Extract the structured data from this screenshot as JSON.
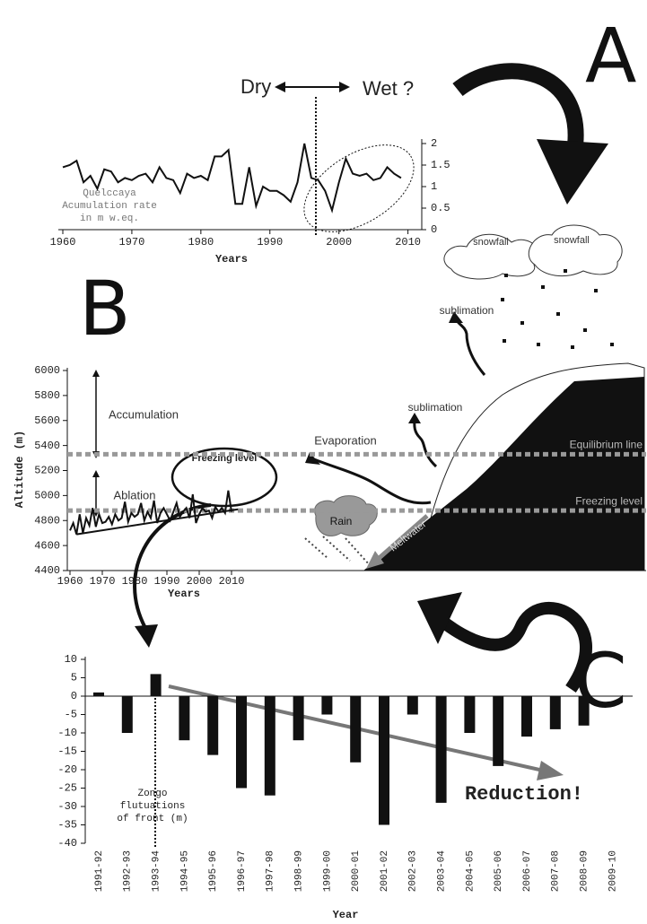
{
  "chart_data": [
    {
      "type": "line",
      "panel": "A",
      "x": [
        1960,
        1961,
        1962,
        1963,
        1964,
        1965,
        1966,
        1967,
        1968,
        1969,
        1970,
        1971,
        1972,
        1973,
        1974,
        1975,
        1976,
        1977,
        1978,
        1979,
        1980,
        1981,
        1982,
        1983,
        1984,
        1985,
        1986,
        1987,
        1988,
        1989,
        1990,
        1991,
        1992,
        1993,
        1994,
        1995,
        1996,
        1997,
        1998,
        1999,
        2000,
        2001,
        2002,
        2003,
        2004,
        2005,
        2006,
        2007,
        2008,
        2009
      ],
      "series": [
        {
          "axis": "y2",
          "color": "#111",
          "values": [
            1.45,
            1.5,
            1.6,
            1.1,
            1.25,
            0.95,
            1.4,
            1.35,
            1.1,
            1.2,
            1.15,
            1.25,
            1.3,
            1.1,
            1.45,
            1.2,
            1.15,
            0.85,
            1.3,
            1.2,
            1.25,
            1.15,
            1.7,
            1.7,
            1.85,
            0.6,
            0.6,
            1.45,
            0.55,
            1.0,
            0.9,
            0.9,
            0.8,
            0.65,
            1.1,
            2.0,
            1.2,
            1.15,
            0.9,
            0.45,
            1.1,
            1.65,
            1.3,
            1.25,
            1.3,
            1.15,
            1.2,
            1.45,
            1.3,
            1.2
          ]
        }
      ],
      "xlim": [
        1960,
        2012
      ],
      "xticks": [
        1960,
        1970,
        1980,
        1990,
        2000,
        2010
      ],
      "y2lim": [
        0,
        2
      ],
      "y2ticks": [
        0,
        0.5,
        1,
        1.5,
        2
      ],
      "xlabel": "Years",
      "annotations": {
        "dry": "Dry",
        "wet": "Wet ?",
        "series_label": [
          "Quelccaya",
          "Acumulation rate",
          "in m w.eq."
        ]
      }
    },
    {
      "type": "line",
      "panel": "B",
      "x": [
        1960,
        1961,
        1962,
        1963,
        1964,
        1965,
        1966,
        1967,
        1968,
        1969,
        1970,
        1971,
        1972,
        1973,
        1974,
        1975,
        1976,
        1977,
        1978,
        1979,
        1980,
        1981,
        1982,
        1983,
        1984,
        1985,
        1986,
        1987,
        1988,
        1989,
        1990,
        1991,
        1992,
        1993,
        1994,
        1995,
        1996,
        1997,
        1998,
        1999,
        2000,
        2001,
        2002,
        2003,
        2004,
        2005,
        2006,
        2007,
        2008,
        2009,
        2010
      ],
      "series": [
        {
          "name": "Freezing level",
          "color": "#111",
          "values": [
            4720,
            4780,
            4690,
            4850,
            4700,
            4820,
            4760,
            4900,
            4750,
            4850,
            4780,
            4790,
            4830,
            4770,
            4850,
            4800,
            4820,
            4950,
            4790,
            4860,
            4830,
            4850,
            4940,
            4800,
            4870,
            4820,
            4960,
            4780,
            4860,
            4900,
            4850,
            4800,
            4870,
            4940,
            4830,
            4870,
            4900,
            4820,
            5010,
            4780,
            4850,
            4900,
            4870,
            4880,
            4820,
            4910,
            4870,
            4900,
            4860,
            5040,
            4870
          ]
        }
      ],
      "trend": {
        "x": [
          1962,
          2012
        ],
        "values": [
          4690,
          4890
        ]
      },
      "xlim": [
        1960,
        2010
      ],
      "xticks": [
        1960,
        1970,
        1980,
        1990,
        2000,
        2010
      ],
      "ylim": [
        4400,
        6000
      ],
      "yticks": [
        4400,
        4600,
        4800,
        5000,
        5200,
        5400,
        5600,
        5800,
        6000
      ],
      "xlabel": "Years",
      "ylabel": "Altitude (m)",
      "reference_lines": [
        {
          "label": "Equilibrium line",
          "value": 5330
        },
        {
          "label": "Freezing level",
          "value": 4880
        }
      ],
      "annotations": {
        "accumulation": "Accumulation",
        "ablation": "Ablation",
        "rain": "Rain",
        "meltwater": "Meltwater",
        "evaporation": "Evaporation",
        "sublimation_low": "sublimation",
        "sublimation_high": "sublimation",
        "snowfall_left": "snowfall",
        "snowfall_right": "snowfall"
      }
    },
    {
      "type": "bar",
      "panel": "C",
      "categories": [
        "1991-92",
        "1992-93",
        "1993-94",
        "1994-95",
        "1995-96",
        "1996-97",
        "1997-98",
        "1998-99",
        "1999-00",
        "2000-01",
        "2001-02",
        "2002-03",
        "2003-04",
        "2004-05",
        "2005-06",
        "2006-07",
        "2007-08",
        "2008-09",
        "2009-10"
      ],
      "values": [
        1,
        -10,
        6,
        -12,
        -16,
        -25,
        -27,
        -12,
        -5,
        -18,
        -35,
        -5,
        -29,
        -10,
        -19,
        -11,
        -9,
        -8,
        null
      ],
      "color": "#111",
      "ylim": [
        -40,
        10
      ],
      "yticks": [
        -40,
        -35,
        -30,
        -25,
        -20,
        -15,
        -10,
        -5,
        0,
        5,
        10
      ],
      "xlabel": "Year",
      "annotations": {
        "series_label": [
          "Zongo",
          "flutuations",
          "of front (m)"
        ],
        "reduction": "Reduction!"
      }
    }
  ]
}
